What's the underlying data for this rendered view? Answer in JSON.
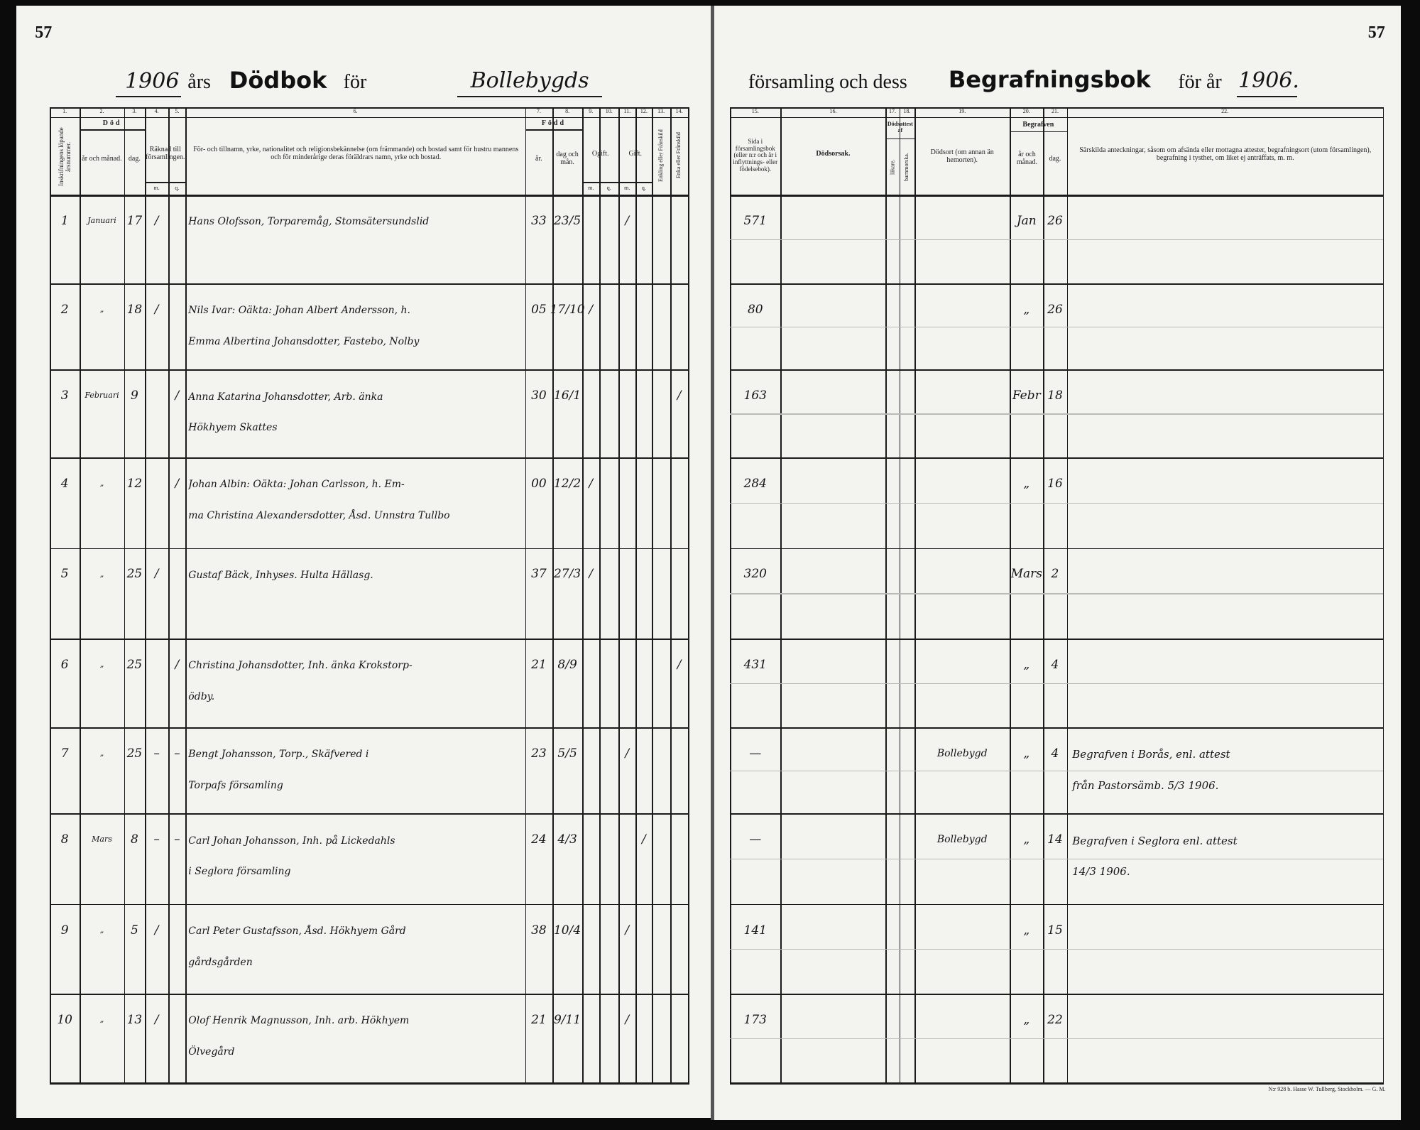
{
  "page_numbers": [
    "57",
    "57"
  ],
  "header": {
    "left": {
      "year": "1906",
      "ars": "års",
      "dodbok": "Dödbok",
      "for": "för",
      "parish": "Bollebygds"
    },
    "right": {
      "forsamling": "församling och dess",
      "begrafningsbok": "Begrafningsbok",
      "for_ar": "för år",
      "year": "1906."
    }
  },
  "left_table": {
    "column_numbers": [
      "1.",
      "2.",
      "3.",
      "4.",
      "5.",
      "6.",
      "7.",
      "8.",
      "9.",
      "10.",
      "11.",
      "12.",
      "13.",
      "14."
    ],
    "headers": {
      "number": "Inskrifningens löpande årsnummer.",
      "dod": "Död",
      "month": "år och månad.",
      "day": "dag.",
      "rakn": "Räknad till församlingen.",
      "person": "För- och tillnamn, yrke, nationalitet och religionsbekännelse (om främmande) och bostad samt för hustru mannens och för minderårige deras föräldrars namn, yrke och bostad.",
      "fodd": "Född",
      "year": "år.",
      "daymonth": "dag och mån.",
      "ogift": "Ogift.",
      "gift": "Gift.",
      "enkling": "Enkling eller Frånskild",
      "enka": "Enka eller Frånskild"
    },
    "subheaders": [
      "m.",
      "q.",
      "m.",
      "q.",
      "m.",
      "q."
    ]
  },
  "right_table": {
    "column_numbers": [
      "15.",
      "16.",
      "17.",
      "18.",
      "19.",
      "20.",
      "21.",
      "22."
    ],
    "headers": {
      "sida": "Sida i församlingsbok (eller n:r och år i inflyttnings- eller födelsebok).",
      "orsak": "Dödsorsak.",
      "attest": "Dödsattest af",
      "lakare": "läkare.",
      "barnmorska": "barnmorska.",
      "dodsort": "Dödsort (om annan än hemorten).",
      "begrafven": "Begrafven",
      "month": "år och månad.",
      "day": "dag.",
      "notes": "Särskilda anteckningar, såsom om afsända eller mottagna attester, begrafningsort (utom församlingen), begrafning i tysthet, om liket ej anträffats, m. m."
    }
  },
  "rows": [
    {
      "no": "1",
      "month": "Januari",
      "day": "17",
      "m": "/",
      "name": [
        "Hans Olofsson, Torparemåg, Stomsätersundslid"
      ],
      "year": "33",
      "date": "23/5",
      "gift_m": "/",
      "right": {
        "page": "571",
        "month": "Jan",
        "day": "26"
      }
    },
    {
      "no": "2",
      "month": "„",
      "day": "18",
      "m": "/",
      "name": [
        "Nils Ivar: Oäkta: Johan Albert Andersson, h.",
        "Emma Albertina Johansdotter, Fastebo, Nolby"
      ],
      "year": "05",
      "date": "17/10",
      "ogift_m": "/",
      "right": {
        "page": "80",
        "month": "„",
        "day": "26"
      }
    },
    {
      "no": "3",
      "month": "Februari",
      "day": "9",
      "q": "/",
      "name": [
        "Anna Katarina Johansdotter, Arb. änka",
        "Hökhyem Skattes"
      ],
      "year": "30",
      "date": "16/1",
      "enka": "/",
      "right": {
        "page": "163",
        "month": "Febr",
        "day": "18"
      }
    },
    {
      "no": "4",
      "month": "„",
      "day": "12",
      "q": "/",
      "name": [
        "Johan Albin: Oäkta: Johan Carlsson, h. Em-",
        "ma Christina Alexandersdotter, Åsd. Unnstra Tullbo"
      ],
      "year": "00",
      "date": "12/2",
      "ogift_m": "/",
      "right": {
        "page": "284",
        "month": "„",
        "day": "16"
      }
    },
    {
      "no": "5",
      "month": "„",
      "day": "25",
      "m": "/",
      "name": [
        "Gustaf Bäck, Inhyses. Hulta Hällasg."
      ],
      "year": "37",
      "date": "27/3",
      "ogift_m": "/",
      "right": {
        "page": "320",
        "month": "Mars",
        "day": "2"
      }
    },
    {
      "no": "6",
      "month": "„",
      "day": "25",
      "q": "/",
      "name": [
        "Christina Johansdotter, Inh. änka Krokstorp-",
        "ödby."
      ],
      "year": "21",
      "date": "8/9",
      "enka": "/",
      "right": {
        "page": "431",
        "month": "„",
        "day": "4"
      }
    },
    {
      "no": "7",
      "month": "„",
      "day": "25",
      "m": "–",
      "q": "–",
      "name": [
        "Bengt Johansson, Torp., Skäfvered i",
        "Torpafs församling"
      ],
      "year": "23",
      "date": "5/5",
      "gift_m": "/",
      "right": {
        "page": "—",
        "dodsort": "Bollebygd",
        "month": "„",
        "day": "4",
        "notes": [
          "Begrafven i Borås, enl. attest",
          "från Pastorsämb. 5/3 1906."
        ]
      }
    },
    {
      "no": "8",
      "month": "Mars",
      "day": "8",
      "m": "–",
      "q": "–",
      "name": [
        "Carl Johan Johansson, Inh. på Lickedahls",
        "i Seglora församling"
      ],
      "year": "24",
      "date": "4/3",
      "gift_q": "/",
      "right": {
        "page": "—",
        "dodsort": "Bollebygd",
        "month": "„",
        "day": "14",
        "notes": [
          "Begrafven i Seglora enl. attest",
          "14/3 1906."
        ]
      }
    },
    {
      "no": "9",
      "month": "„",
      "day": "5",
      "m": "/",
      "name": [
        "Carl Peter Gustafsson, Åsd. Hökhyem Gård",
        "gårdsgården"
      ],
      "year": "38",
      "date": "10/4",
      "gift_m": "/",
      "right": {
        "page": "141",
        "month": "„",
        "day": "15"
      }
    },
    {
      "no": "10",
      "month": "„",
      "day": "13",
      "m": "/",
      "name": [
        "Olof Henrik Magnusson, Inh. arb. Hökhyem",
        "Ölvegård"
      ],
      "year": "21",
      "date": "9/11",
      "gift_m": "/",
      "right": {
        "page": "173",
        "month": "„",
        "day": "22"
      }
    }
  ],
  "footer": "N:r 928 b. Hasse W. Tullberg, Stockholm. — G. M."
}
